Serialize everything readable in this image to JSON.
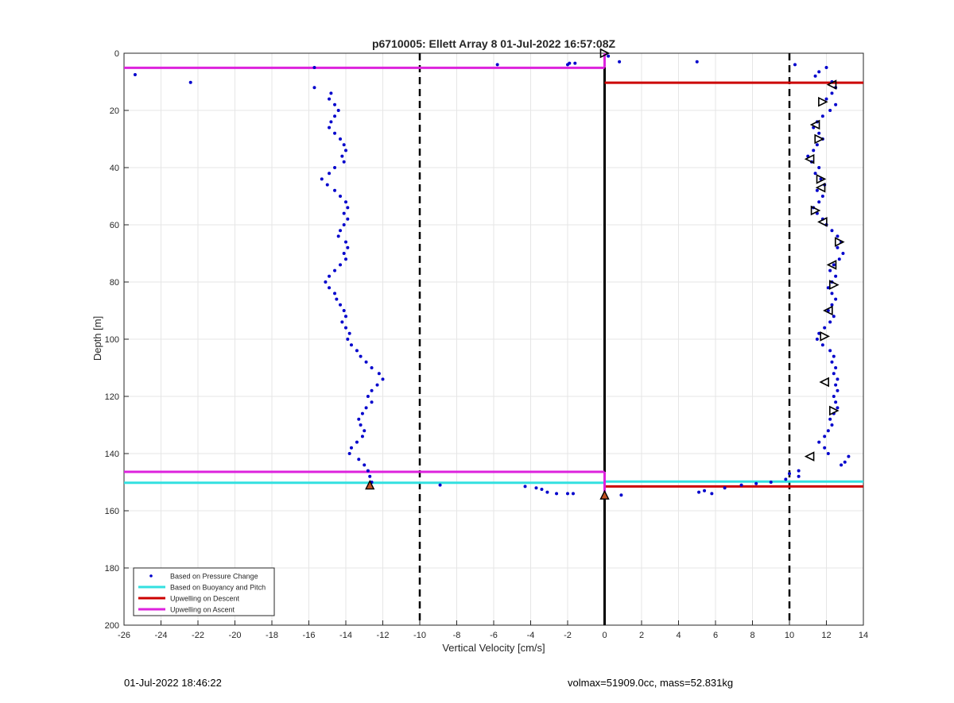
{
  "chart_data": {
    "type": "scatter",
    "title": "p6710005: Ellett Array 8 01-Jul-2022 16:57:08Z",
    "xlabel": "Vertical Velocity [cm/s]",
    "ylabel": "Depth [m]",
    "xlim": [
      -26,
      14
    ],
    "ylim": [
      0,
      200
    ],
    "y_reversed": true,
    "grid": true,
    "xticks": [
      "-26",
      "-24",
      "-22",
      "-20",
      "-18",
      "-16",
      "-14",
      "-12",
      "-10",
      "-8",
      "-6",
      "-4",
      "-2",
      "0",
      "2",
      "4",
      "6",
      "8",
      "10",
      "12",
      "14"
    ],
    "yticks": [
      "0",
      "20",
      "40",
      "60",
      "80",
      "100",
      "120",
      "140",
      "160",
      "180",
      "200"
    ],
    "legend_position": "bottom-left",
    "legend": [
      "Based on Pressure Change",
      "Based on Buoyancy and Pitch",
      "Upwelling on Descent",
      "Upwelling on Ascent"
    ],
    "colors": {
      "pressure": "#0000cc",
      "buoyancy": "#33e0e0",
      "descent": "#cc0000",
      "ascent": "#dd22dd",
      "guides": "#000000"
    },
    "dashed_reference_x": [
      -10,
      10
    ],
    "zero_line_x": 0,
    "descent_pressure": [
      [
        0.2,
        1
      ],
      [
        0.8,
        3
      ],
      [
        5,
        3
      ],
      [
        10.3,
        4
      ],
      [
        11.6,
        6.5
      ],
      [
        11.4,
        8
      ],
      [
        12.0,
        5
      ],
      [
        12.3,
        10
      ],
      [
        12.5,
        12
      ],
      [
        12.3,
        14
      ],
      [
        12.0,
        16
      ],
      [
        12.5,
        18
      ],
      [
        12.2,
        20
      ],
      [
        11.8,
        22
      ],
      [
        11.5,
        24
      ],
      [
        11.3,
        26
      ],
      [
        11.6,
        28
      ],
      [
        11.8,
        30
      ],
      [
        11.5,
        32
      ],
      [
        11.3,
        34
      ],
      [
        11.0,
        36
      ],
      [
        11.2,
        38
      ],
      [
        11.6,
        40
      ],
      [
        11.4,
        42
      ],
      [
        11.7,
        44
      ],
      [
        11.9,
        46
      ],
      [
        11.5,
        48
      ],
      [
        11.8,
        50
      ],
      [
        11.6,
        52
      ],
      [
        11.3,
        54
      ],
      [
        11.5,
        56
      ],
      [
        11.8,
        58
      ],
      [
        12.0,
        60
      ],
      [
        12.3,
        62
      ],
      [
        12.6,
        64
      ],
      [
        12.8,
        66
      ],
      [
        12.6,
        68
      ],
      [
        12.9,
        70
      ],
      [
        12.7,
        72
      ],
      [
        12.4,
        74
      ],
      [
        12.2,
        76
      ],
      [
        12.5,
        78
      ],
      [
        12.3,
        80
      ],
      [
        12.1,
        82
      ],
      [
        12.3,
        84
      ],
      [
        12.5,
        86
      ],
      [
        12.3,
        88
      ],
      [
        12.1,
        90
      ],
      [
        12.4,
        92
      ],
      [
        12.2,
        94
      ],
      [
        11.9,
        96
      ],
      [
        11.6,
        98
      ],
      [
        11.5,
        100
      ],
      [
        11.8,
        102
      ],
      [
        12.2,
        104
      ],
      [
        12.4,
        106
      ],
      [
        12.3,
        108
      ],
      [
        12.5,
        110
      ],
      [
        12.4,
        112
      ],
      [
        12.6,
        114
      ],
      [
        12.5,
        116
      ],
      [
        12.6,
        118
      ],
      [
        12.4,
        120
      ],
      [
        12.5,
        122
      ],
      [
        12.6,
        124
      ],
      [
        12.4,
        126
      ],
      [
        12.2,
        128
      ],
      [
        12.3,
        130
      ],
      [
        12.1,
        132
      ],
      [
        11.9,
        134
      ],
      [
        11.6,
        136
      ],
      [
        11.9,
        138
      ],
      [
        12.1,
        140
      ],
      [
        13.2,
        141
      ],
      [
        13.0,
        143
      ],
      [
        12.8,
        144
      ],
      [
        10.5,
        146
      ],
      [
        10.0,
        147
      ],
      [
        10.5,
        148
      ],
      [
        9.8,
        149
      ],
      [
        9.0,
        150
      ],
      [
        8.2,
        150.5
      ],
      [
        7.4,
        151
      ],
      [
        6.5,
        152
      ],
      [
        5.4,
        153
      ],
      [
        5.8,
        154
      ],
      [
        5.1,
        153.5
      ]
    ],
    "ascent_pressure": [
      [
        -25.4,
        7.5
      ],
      [
        -22.4,
        10.2
      ],
      [
        -15.7,
        5
      ],
      [
        -15.7,
        12
      ],
      [
        -14.8,
        14
      ],
      [
        -14.9,
        16
      ],
      [
        -14.6,
        18
      ],
      [
        -14.4,
        20
      ],
      [
        -14.6,
        22
      ],
      [
        -14.8,
        24
      ],
      [
        -14.9,
        26
      ],
      [
        -14.6,
        28
      ],
      [
        -14.3,
        30
      ],
      [
        -14.1,
        32
      ],
      [
        -14.0,
        34
      ],
      [
        -14.2,
        36
      ],
      [
        -14.1,
        38
      ],
      [
        -14.6,
        40
      ],
      [
        -14.9,
        42
      ],
      [
        -15.3,
        44
      ],
      [
        -15.0,
        46
      ],
      [
        -14.6,
        48
      ],
      [
        -14.3,
        50
      ],
      [
        -14.0,
        52
      ],
      [
        -13.9,
        54
      ],
      [
        -14.1,
        56
      ],
      [
        -13.9,
        58
      ],
      [
        -14.1,
        60
      ],
      [
        -14.3,
        62
      ],
      [
        -14.4,
        64
      ],
      [
        -14.0,
        66
      ],
      [
        -13.9,
        68
      ],
      [
        -14.1,
        70
      ],
      [
        -14.0,
        72
      ],
      [
        -14.3,
        74
      ],
      [
        -14.6,
        76
      ],
      [
        -14.9,
        78
      ],
      [
        -15.1,
        80
      ],
      [
        -14.9,
        82
      ],
      [
        -14.6,
        84
      ],
      [
        -14.5,
        86
      ],
      [
        -14.3,
        88
      ],
      [
        -14.1,
        90
      ],
      [
        -14.0,
        92
      ],
      [
        -14.2,
        94
      ],
      [
        -14.0,
        96
      ],
      [
        -13.8,
        98
      ],
      [
        -13.9,
        100
      ],
      [
        -13.7,
        102
      ],
      [
        -13.4,
        104
      ],
      [
        -13.2,
        106
      ],
      [
        -12.9,
        108
      ],
      [
        -12.6,
        110
      ],
      [
        -12.2,
        112
      ],
      [
        -12.0,
        114
      ],
      [
        -12.3,
        116
      ],
      [
        -12.6,
        118
      ],
      [
        -12.8,
        120
      ],
      [
        -12.6,
        122
      ],
      [
        -12.9,
        124
      ],
      [
        -13.1,
        126
      ],
      [
        -13.3,
        128
      ],
      [
        -13.2,
        130
      ],
      [
        -13.0,
        132
      ],
      [
        -13.1,
        134
      ],
      [
        -13.4,
        136
      ],
      [
        -13.7,
        138
      ],
      [
        -13.8,
        140
      ],
      [
        -13.3,
        142
      ],
      [
        -13.0,
        144
      ],
      [
        -12.8,
        146
      ],
      [
        -12.7,
        148
      ],
      [
        -12.6,
        150
      ],
      [
        -8.9,
        151
      ],
      [
        -4.3,
        151.5
      ],
      [
        -3.7,
        152
      ],
      [
        -3.4,
        152.5
      ],
      [
        -3.1,
        153.5
      ],
      [
        -2.6,
        154
      ],
      [
        -2.0,
        154
      ],
      [
        -1.7,
        154
      ],
      [
        -5.8,
        4
      ],
      [
        -2.0,
        4
      ],
      [
        -1.9,
        3.5
      ],
      [
        -1.6,
        3.5
      ],
      [
        0.9,
        154.5
      ]
    ],
    "descent_markers": [
      [
        0,
        0
      ],
      [
        12.3,
        11
      ],
      [
        11.8,
        17
      ],
      [
        11.4,
        25
      ],
      [
        11.6,
        30
      ],
      [
        11.1,
        37
      ],
      [
        11.7,
        44
      ],
      [
        11.7,
        47
      ],
      [
        11.4,
        55
      ],
      [
        11.8,
        59
      ],
      [
        12.7,
        66
      ],
      [
        12.3,
        74
      ],
      [
        12.4,
        81
      ],
      [
        12.1,
        90
      ],
      [
        11.9,
        99
      ],
      [
        11.9,
        115
      ],
      [
        12.4,
        125
      ],
      [
        11.1,
        141
      ]
    ],
    "ascent_markers": [
      [
        -12.7,
        151
      ],
      [
        0,
        154.5
      ]
    ],
    "buoyancy_lines": [
      {
        "y": 150.2,
        "x0": -26,
        "x1": 0
      },
      {
        "y": 149.8,
        "x0": 0,
        "x1": 14
      }
    ],
    "descent_lines": [
      {
        "y": 10.3,
        "x0": 0,
        "x1": 14
      },
      {
        "y": 151.5,
        "x0": 0,
        "x1": 14
      }
    ],
    "ascent_lines": [
      {
        "y": 5.1,
        "x0": -26,
        "x1": 0
      },
      {
        "y": 146.4,
        "x0": -26,
        "x1": 0
      }
    ]
  },
  "footer": {
    "date": "01-Jul-2022 18:46:22",
    "info": "volmax=51909.0cc, mass=52.831kg"
  }
}
